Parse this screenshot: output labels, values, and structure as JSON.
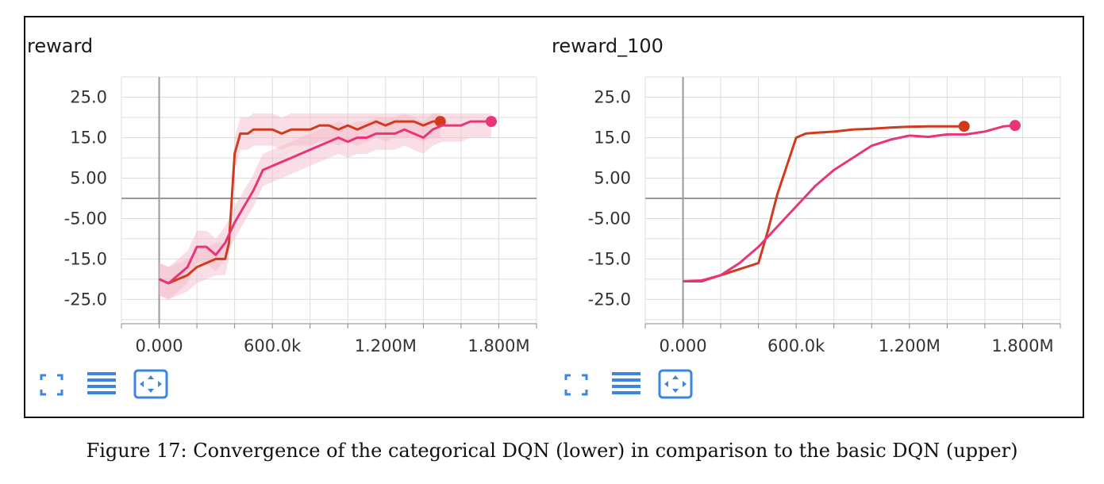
{
  "caption": "Figure 17: Convergence of the categorical DQN (lower) in comparison to the basic DQN (upper)",
  "colors": {
    "upper": "#d13a1f",
    "lower": "#e8357a",
    "band": "#f2b8c6",
    "grid": "#dcdcdc",
    "axis": "#888888"
  },
  "icons": [
    "fit-icon",
    "list-icon",
    "expand-icon"
  ],
  "chart_data": [
    {
      "type": "line",
      "title": "reward",
      "ylim": [
        -31,
        30
      ],
      "xlim": [
        -200000,
        2000000
      ],
      "yticks": [
        25,
        15,
        5,
        -5,
        -15,
        -25
      ],
      "ytick_labels": [
        "25.0",
        "15.0",
        "5.00",
        "-5.00",
        "-15.0",
        "-25.0"
      ],
      "xticks": [
        0,
        600000,
        1200000,
        1800000
      ],
      "xtick_labels": [
        "0.000",
        "600.0k",
        "1.200M",
        "1.800M"
      ],
      "grid": true,
      "series": [
        {
          "color": "#d13a1f",
          "x": [
            0,
            50000,
            100000,
            150000,
            200000,
            250000,
            300000,
            350000,
            370000,
            400000,
            430000,
            470000,
            500000,
            550000,
            600000,
            650000,
            700000,
            750000,
            800000,
            850000,
            900000,
            950000,
            1000000,
            1050000,
            1100000,
            1150000,
            1200000,
            1250000,
            1300000,
            1350000,
            1400000,
            1450000,
            1490000
          ],
          "y": [
            -20,
            -21,
            -20,
            -19,
            -17,
            -16,
            -15,
            -15,
            -11,
            11,
            16,
            16,
            17,
            17,
            17,
            16,
            17,
            17,
            17,
            18,
            18,
            17,
            18,
            17,
            18,
            19,
            18,
            19,
            19,
            19,
            18,
            19,
            19
          ],
          "end_marker": true
        },
        {
          "color": "#e8357a",
          "x": [
            0,
            50000,
            100000,
            150000,
            200000,
            250000,
            300000,
            350000,
            400000,
            450000,
            500000,
            550000,
            600000,
            650000,
            700000,
            750000,
            800000,
            850000,
            900000,
            950000,
            1000000,
            1050000,
            1100000,
            1150000,
            1200000,
            1250000,
            1300000,
            1350000,
            1400000,
            1450000,
            1500000,
            1550000,
            1600000,
            1650000,
            1700000,
            1760000
          ],
          "y": [
            -20,
            -21,
            -19,
            -17,
            -12,
            -12,
            -14,
            -11,
            -6,
            -2,
            2,
            7,
            8,
            9,
            10,
            11,
            12,
            13,
            14,
            15,
            14,
            15,
            15,
            16,
            16,
            16,
            17,
            16,
            15,
            17,
            18,
            18,
            18,
            19,
            19,
            19
          ],
          "end_marker": true
        }
      ]
    },
    {
      "type": "line",
      "title": "reward_100",
      "ylim": [
        -31,
        30
      ],
      "xlim": [
        -200000,
        2000000
      ],
      "yticks": [
        25,
        15,
        5,
        -5,
        -15,
        -25
      ],
      "ytick_labels": [
        "25.0",
        "15.0",
        "5.00",
        "-5.00",
        "-15.0",
        "-25.0"
      ],
      "xticks": [
        0,
        600000,
        1200000,
        1800000
      ],
      "xtick_labels": [
        "0.000",
        "600.0k",
        "1.200M",
        "1.800M"
      ],
      "grid": true,
      "series": [
        {
          "color": "#d13a1f",
          "x": [
            0,
            100000,
            200000,
            300000,
            400000,
            450000,
            500000,
            550000,
            600000,
            650000,
            700000,
            800000,
            900000,
            1000000,
            1100000,
            1200000,
            1300000,
            1400000,
            1490000
          ],
          "y": [
            -20.5,
            -20.5,
            -19,
            -17.5,
            -16,
            -8,
            1,
            8,
            15,
            16,
            16.2,
            16.5,
            17,
            17.2,
            17.5,
            17.7,
            17.8,
            17.8,
            17.8
          ],
          "end_marker": true
        },
        {
          "color": "#e8357a",
          "x": [
            0,
            100000,
            200000,
            300000,
            400000,
            500000,
            600000,
            700000,
            800000,
            900000,
            1000000,
            1100000,
            1200000,
            1300000,
            1400000,
            1500000,
            1600000,
            1700000,
            1760000
          ],
          "y": [
            -20.5,
            -20.3,
            -19,
            -16,
            -12,
            -7,
            -2,
            3,
            7,
            10,
            13,
            14.5,
            15.5,
            15.2,
            15.8,
            15.8,
            16.5,
            17.8,
            18
          ],
          "end_marker": true
        }
      ]
    }
  ]
}
